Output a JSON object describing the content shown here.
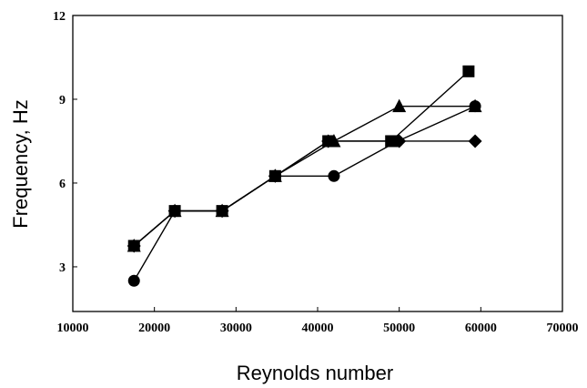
{
  "chart_data": {
    "type": "scatter",
    "title": "",
    "xlabel": "Reynolds number",
    "ylabel": "Frequency, Hz",
    "xlim": [
      10000,
      70000
    ],
    "ylim": [
      1.4,
      12
    ],
    "x_ticks": [
      "10000",
      "20000",
      "30000",
      "40000",
      "50000",
      "60000",
      "70000"
    ],
    "x_tick_values": [
      10000,
      20000,
      30000,
      40000,
      50000,
      60000,
      70000
    ],
    "y_ticks": [
      "3",
      "6",
      "9",
      "12"
    ],
    "y_tick_values": [
      3,
      6,
      9,
      12
    ],
    "grid": false,
    "legend": "none",
    "series": [
      {
        "marker": "circle",
        "x": [
          17500,
          22500,
          28300,
          34800,
          42000,
          49800,
          59300
        ],
        "y": [
          2.5,
          5.0,
          5.0,
          6.25,
          6.25,
          7.5,
          8.75
        ]
      },
      {
        "marker": "triangle",
        "x": [
          17500,
          22500,
          28300,
          34800,
          42000,
          50000,
          59300
        ],
        "y": [
          3.75,
          5.0,
          5.0,
          6.25,
          7.5,
          8.75,
          8.75
        ]
      },
      {
        "marker": "square",
        "x": [
          17500,
          22500,
          28300,
          34800,
          41300,
          49000,
          58500
        ],
        "y": [
          3.75,
          5.0,
          5.0,
          6.25,
          7.5,
          7.5,
          10.0
        ]
      },
      {
        "marker": "diamond",
        "x": [
          17500,
          22500,
          28300,
          34800,
          41300,
          50000,
          59300
        ],
        "y": [
          3.75,
          5.0,
          5.0,
          6.25,
          7.5,
          7.5,
          7.5
        ]
      }
    ],
    "colors": {
      "marker": "#000000",
      "line": "#000000",
      "background": "#ffffff"
    }
  }
}
